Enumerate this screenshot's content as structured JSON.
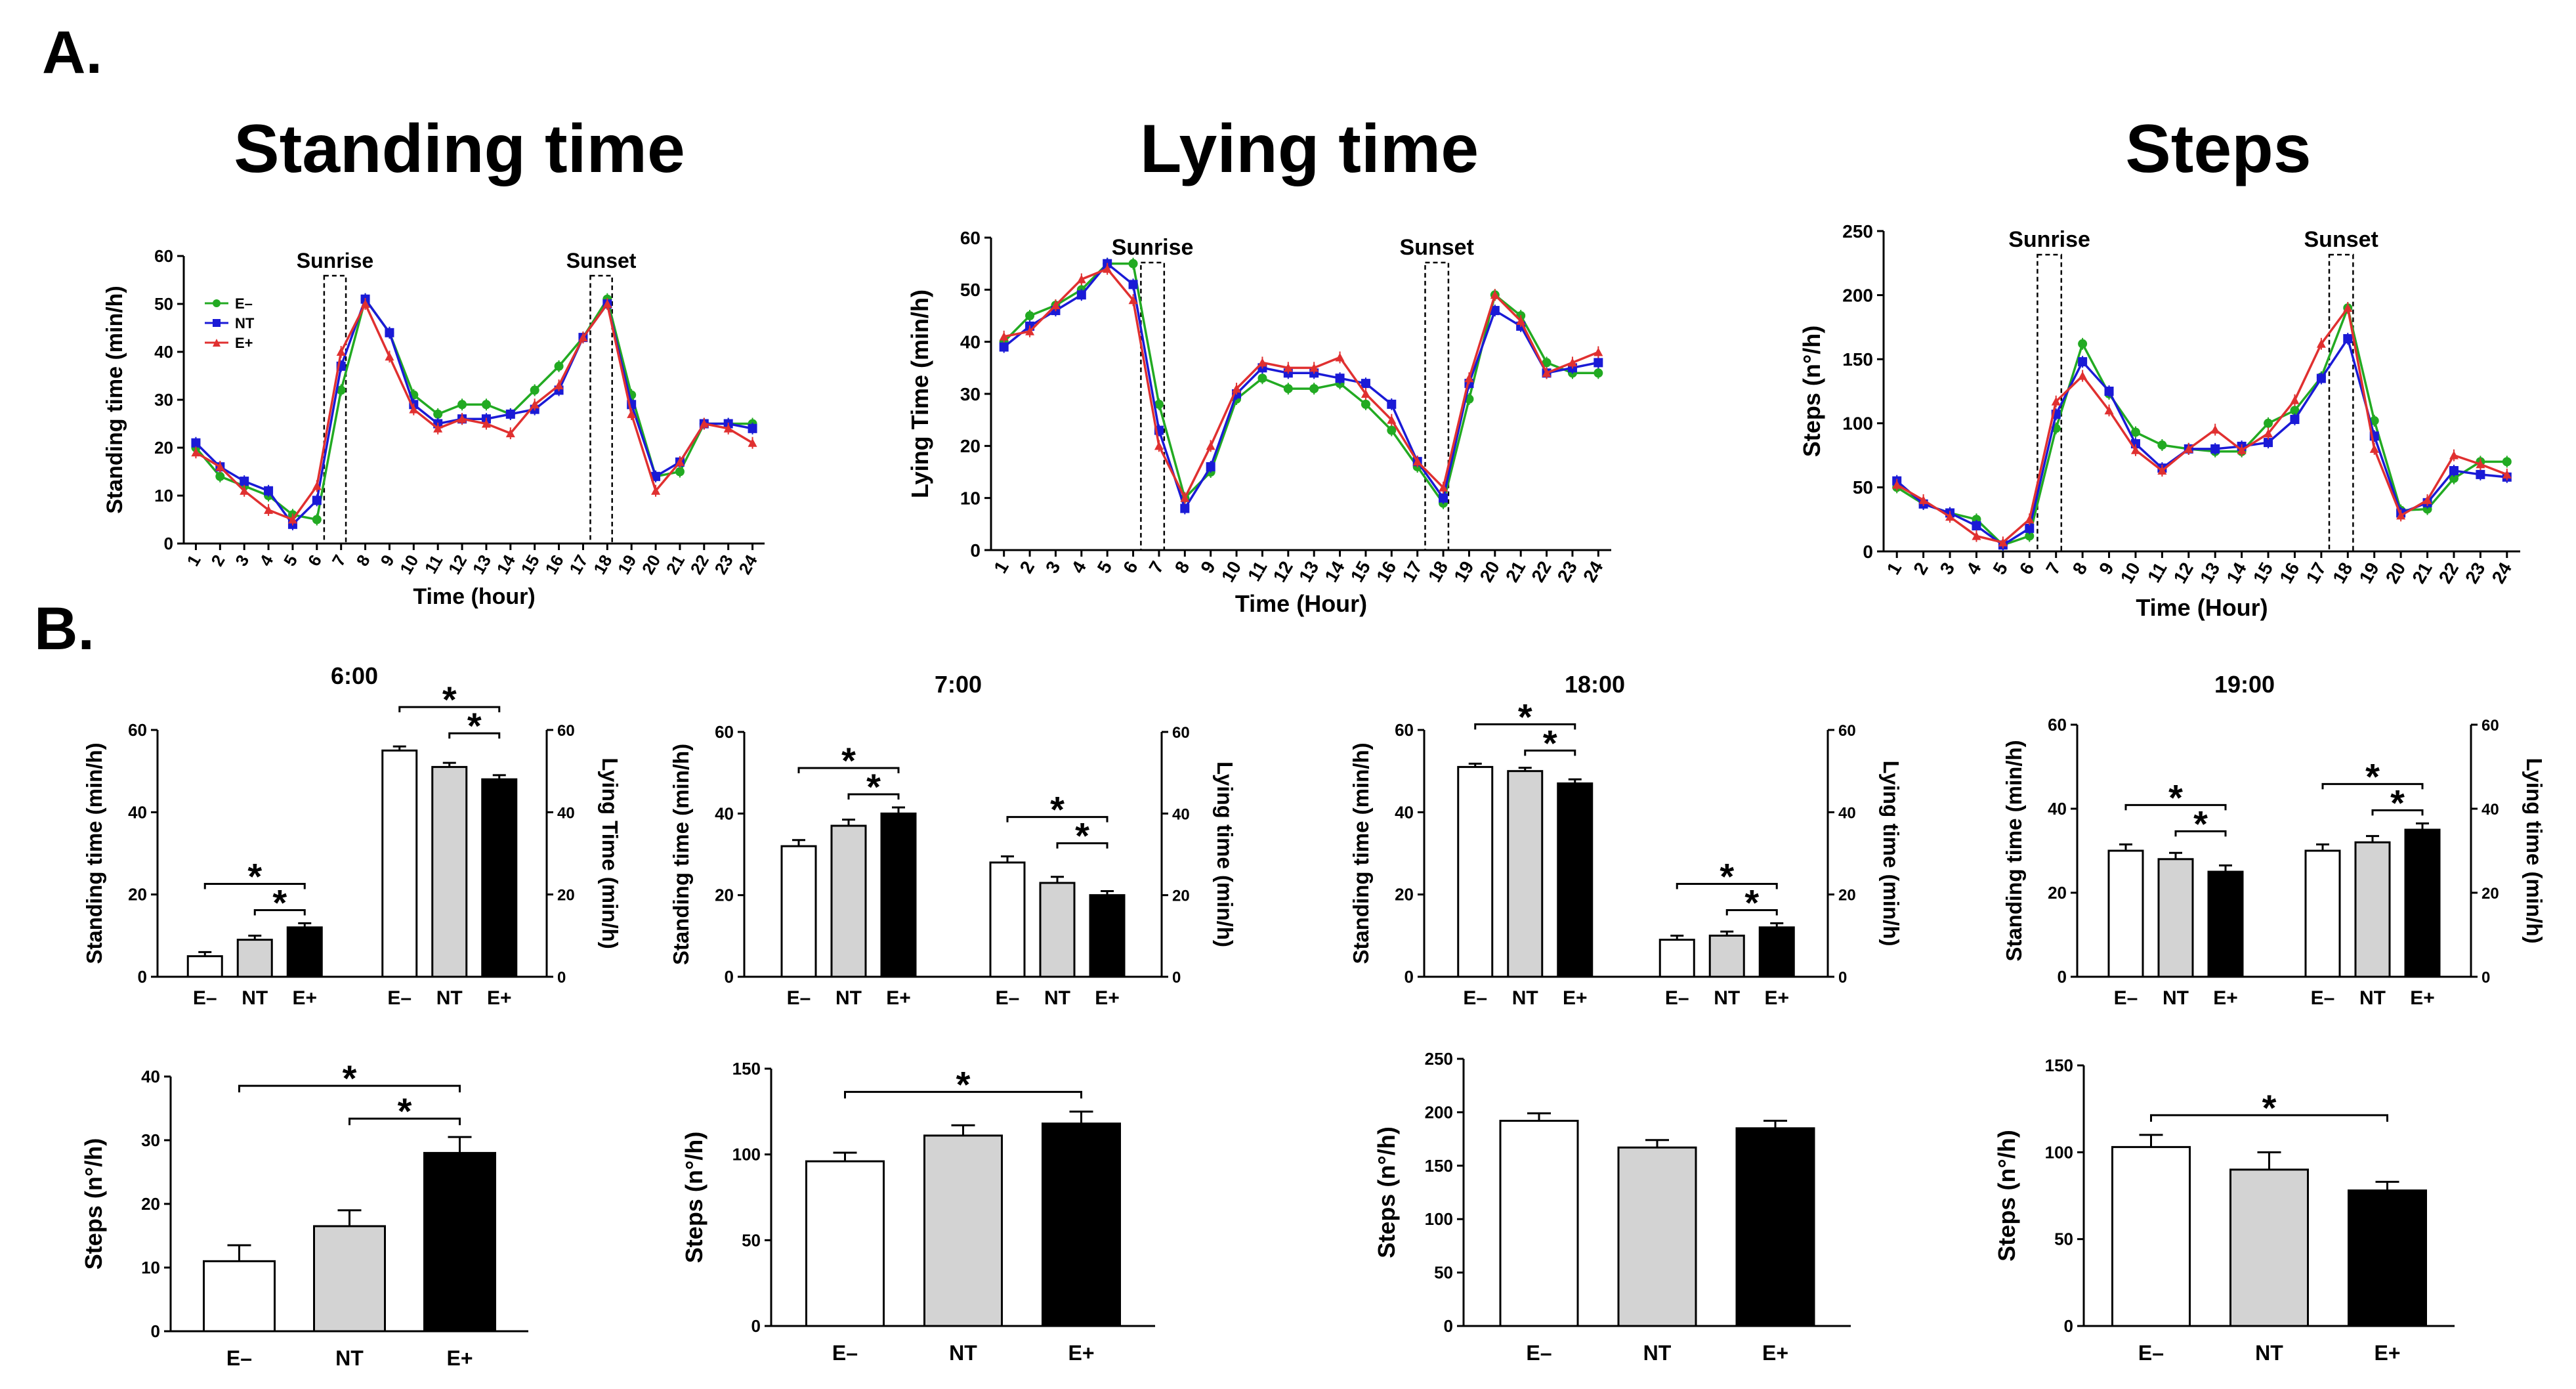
{
  "panel_a_label": "A.",
  "panel_b_label": "B.",
  "sunrise_label": "Sunrise",
  "sunset_label": "Sunset",
  "colors": {
    "E-": "#22aa22",
    "NT": "#1a1ad6",
    "E+": "#e03030",
    "NT_bar": "#d3d3d3",
    "E+_bar": "#000000",
    "E-_bar": "#ffffff"
  },
  "chart_data": [
    {
      "id": "a1",
      "type": "line",
      "title": "Standing time",
      "xlabel": "Time (hour)",
      "ylabel": "Standing time (min/h)",
      "ylim": [
        0,
        60
      ],
      "yticks": [
        0,
        10,
        20,
        30,
        40,
        50,
        60
      ],
      "x": [
        1,
        2,
        3,
        4,
        5,
        6,
        7,
        8,
        9,
        10,
        11,
        12,
        13,
        14,
        15,
        16,
        17,
        18,
        19,
        20,
        21,
        22,
        23,
        24
      ],
      "legend": [
        "E–",
        "NT",
        "E+"
      ],
      "series": [
        {
          "name": "E–",
          "values": [
            20,
            14,
            12,
            10,
            6,
            5,
            32,
            51,
            44,
            31,
            27,
            29,
            29,
            27,
            32,
            37,
            43,
            51,
            31,
            14,
            15,
            25,
            25,
            25
          ]
        },
        {
          "name": "NT",
          "values": [
            21,
            16,
            13,
            11,
            4,
            9,
            37,
            51,
            44,
            29,
            25,
            26,
            26,
            27,
            28,
            32,
            43,
            50,
            29,
            14,
            17,
            25,
            25,
            24
          ]
        },
        {
          "name": "E+",
          "values": [
            19,
            16,
            11,
            7,
            5,
            12,
            40,
            50,
            39,
            28,
            24,
            26,
            25,
            23,
            29,
            33,
            43,
            50,
            27,
            11,
            17,
            25,
            24,
            21
          ]
        }
      ]
    },
    {
      "id": "a2",
      "type": "line",
      "title": "Lying time",
      "xlabel": "Time (Hour)",
      "ylabel": "Lying Time (min/h)",
      "ylim": [
        0,
        60
      ],
      "yticks": [
        0,
        10,
        20,
        30,
        40,
        50,
        60
      ],
      "x": [
        1,
        2,
        3,
        4,
        5,
        6,
        7,
        8,
        9,
        10,
        11,
        12,
        13,
        14,
        15,
        16,
        17,
        18,
        19,
        20,
        21,
        22,
        23,
        24
      ],
      "series": [
        {
          "name": "E–",
          "values": [
            40,
            45,
            47,
            50,
            55,
            55,
            28,
            10,
            15,
            29,
            33,
            31,
            31,
            32,
            28,
            23,
            16,
            9,
            29,
            49,
            45,
            36,
            34,
            34
          ]
        },
        {
          "name": "NT",
          "values": [
            39,
            43,
            46,
            49,
            55,
            51,
            23,
            8,
            16,
            30,
            35,
            34,
            34,
            33,
            32,
            28,
            17,
            10,
            32,
            46,
            43,
            34,
            35,
            36
          ]
        },
        {
          "name": "E+",
          "values": [
            41,
            42,
            47,
            52,
            54,
            48,
            20,
            10,
            20,
            31,
            36,
            35,
            35,
            37,
            30,
            25,
            17,
            12,
            33,
            49,
            44,
            34,
            36,
            38
          ]
        }
      ]
    },
    {
      "id": "a3",
      "type": "line",
      "title": "Steps",
      "xlabel": "Time (Hour)",
      "ylabel": "Steps (n°/h)",
      "ylim": [
        0,
        250
      ],
      "yticks": [
        0,
        50,
        100,
        150,
        200,
        250
      ],
      "x": [
        1,
        2,
        3,
        4,
        5,
        6,
        7,
        8,
        9,
        10,
        11,
        12,
        13,
        14,
        15,
        16,
        17,
        18,
        19,
        20,
        21,
        22,
        23,
        24
      ],
      "series": [
        {
          "name": "E–",
          "values": [
            50,
            37,
            30,
            25,
            5,
            12,
            96,
            162,
            123,
            93,
            83,
            80,
            78,
            78,
            100,
            110,
            136,
            190,
            102,
            32,
            33,
            57,
            70,
            70
          ]
        },
        {
          "name": "NT",
          "values": [
            55,
            37,
            30,
            20,
            5,
            18,
            107,
            148,
            125,
            84,
            65,
            80,
            80,
            82,
            85,
            103,
            135,
            166,
            90,
            30,
            38,
            63,
            60,
            58
          ]
        },
        {
          "name": "E+",
          "values": [
            52,
            40,
            27,
            12,
            7,
            25,
            117,
            137,
            110,
            79,
            63,
            80,
            95,
            79,
            92,
            118,
            162,
            190,
            80,
            28,
            40,
            75,
            68,
            60
          ]
        }
      ]
    },
    {
      "id": "b1",
      "type": "bar",
      "title": "6:00",
      "ylabel_left": "Standing time (min/h)",
      "ylabel_right": "Lying Time (min/h)",
      "ylim": [
        0,
        60
      ],
      "yticks": [
        0,
        20,
        40,
        60
      ],
      "groups": [
        {
          "categories": [
            "E–",
            "NT",
            "E+"
          ],
          "values": [
            5,
            9,
            12
          ],
          "errors": [
            1,
            1,
            1
          ]
        },
        {
          "categories": [
            "E–",
            "NT",
            "E+"
          ],
          "values": [
            55,
            51,
            48
          ],
          "errors": [
            1,
            1,
            1
          ]
        }
      ],
      "annotations": [
        "*",
        "*",
        "*",
        "*"
      ]
    },
    {
      "id": "b2",
      "type": "bar",
      "title": "7:00",
      "ylabel_left": "Standing time (min/h)",
      "ylabel_right": "Lying time (min/h)",
      "ylim": [
        0,
        60
      ],
      "yticks": [
        0,
        20,
        40,
        60
      ],
      "groups": [
        {
          "categories": [
            "E–",
            "NT",
            "E+"
          ],
          "values": [
            32,
            37,
            40
          ],
          "errors": [
            1.5,
            1.5,
            1.5
          ]
        },
        {
          "categories": [
            "E–",
            "NT",
            "E+"
          ],
          "values": [
            28,
            23,
            20
          ],
          "errors": [
            1.5,
            1.5,
            1
          ]
        }
      ],
      "annotations": [
        "*",
        "*",
        "*",
        "*"
      ]
    },
    {
      "id": "b3",
      "type": "bar",
      "title": "18:00",
      "ylabel_left": "Standing time (min/h)",
      "ylabel_right": "Lying time (min/h)",
      "ylim": [
        0,
        60
      ],
      "yticks": [
        0,
        20,
        40,
        60
      ],
      "groups": [
        {
          "categories": [
            "E–",
            "NT",
            "E+"
          ],
          "values": [
            51,
            50,
            47
          ],
          "errors": [
            0.8,
            0.8,
            1
          ]
        },
        {
          "categories": [
            "E–",
            "NT",
            "E+"
          ],
          "values": [
            9,
            10,
            12
          ],
          "errors": [
            1,
            1,
            1
          ]
        }
      ],
      "annotations": [
        "*",
        "*",
        "*",
        "*"
      ]
    },
    {
      "id": "b4",
      "type": "bar",
      "title": "19:00",
      "ylabel_left": "Standing time (min/h)",
      "ylabel_right": "Lying time (min/h)",
      "ylim": [
        0,
        60
      ],
      "yticks": [
        0,
        20,
        40,
        60
      ],
      "groups": [
        {
          "categories": [
            "E–",
            "NT",
            "E+"
          ],
          "values": [
            30,
            28,
            25
          ],
          "errors": [
            1.5,
            1.5,
            1.5
          ]
        },
        {
          "categories": [
            "E–",
            "NT",
            "E+"
          ],
          "values": [
            30,
            32,
            35
          ],
          "errors": [
            1.5,
            1.5,
            1.5
          ]
        }
      ],
      "annotations": [
        "*",
        "*",
        "*",
        "*"
      ]
    },
    {
      "id": "c1",
      "type": "bar",
      "title": "",
      "ylabel": "Steps (n°/h)",
      "ylim": [
        0,
        40
      ],
      "yticks": [
        0,
        10,
        20,
        30,
        40
      ],
      "categories": [
        "E–",
        "NT",
        "E+"
      ],
      "values": [
        11,
        16.5,
        28
      ],
      "errors": [
        2.5,
        2.5,
        2.5
      ],
      "annotations": [
        "*",
        "*"
      ]
    },
    {
      "id": "c2",
      "type": "bar",
      "title": "",
      "ylabel": "Steps (n°/h)",
      "ylim": [
        0,
        150
      ],
      "yticks": [
        0,
        50,
        100,
        150
      ],
      "categories": [
        "E–",
        "NT",
        "E+"
      ],
      "values": [
        96,
        111,
        118
      ],
      "errors": [
        5,
        6,
        7
      ],
      "annotations": [
        "*"
      ]
    },
    {
      "id": "c3",
      "type": "bar",
      "title": "",
      "ylabel": "Steps (n°/h)",
      "ylim": [
        0,
        250
      ],
      "yticks": [
        0,
        50,
        100,
        150,
        200,
        250
      ],
      "categories": [
        "E–",
        "NT",
        "E+"
      ],
      "values": [
        192,
        167,
        185
      ],
      "errors": [
        7,
        7,
        7
      ],
      "annotations": []
    },
    {
      "id": "c4",
      "type": "bar",
      "title": "",
      "ylabel": "Steps (n°/h)",
      "ylim": [
        0,
        150
      ],
      "yticks": [
        0,
        50,
        100,
        150
      ],
      "categories": [
        "E–",
        "NT",
        "E+"
      ],
      "values": [
        103,
        90,
        78
      ],
      "errors": [
        7,
        10,
        5
      ],
      "annotations": [
        "*"
      ]
    }
  ]
}
